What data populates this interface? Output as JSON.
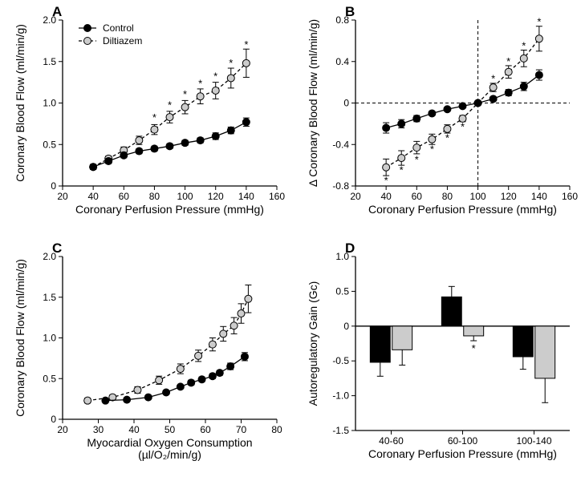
{
  "colors": {
    "control_fill": "#000000",
    "diltiazem_fill": "#cccccc",
    "stroke": "#000000",
    "bg": "#ffffff",
    "dash": "#000000"
  },
  "marker": {
    "r": 4.5,
    "stroke_w": 1
  },
  "line_w": 1.3,
  "err_cap": 4,
  "panelA": {
    "label": "A",
    "type": "scatter-line",
    "xlim": [
      20,
      160
    ],
    "xticks": [
      20,
      40,
      60,
      80,
      100,
      120,
      140,
      160
    ],
    "ylim": [
      0,
      2.0
    ],
    "yticks": [
      0,
      0.5,
      1.0,
      1.5,
      2.0
    ],
    "xlabel": "Coronary Perfusion Pressure (mmHg)",
    "ylabel": "Coronary Blood Flow (ml/min/g)",
    "legend": {
      "control": "Control",
      "diltiazem": "Diltiazem"
    },
    "series": {
      "control": {
        "x": [
          40,
          50,
          60,
          70,
          80,
          90,
          100,
          110,
          120,
          130,
          140
        ],
        "y": [
          0.23,
          0.3,
          0.37,
          0.42,
          0.45,
          0.48,
          0.52,
          0.55,
          0.6,
          0.67,
          0.77
        ],
        "err": [
          0.03,
          0.03,
          0.03,
          0.03,
          0.03,
          0.03,
          0.03,
          0.03,
          0.04,
          0.04,
          0.05
        ]
      },
      "diltiazem": {
        "x": [
          40,
          50,
          60,
          70,
          80,
          90,
          100,
          110,
          120,
          130,
          140
        ],
        "y": [
          0.23,
          0.33,
          0.43,
          0.55,
          0.68,
          0.83,
          0.95,
          1.08,
          1.15,
          1.3,
          1.48
        ],
        "err": [
          0.03,
          0.03,
          0.04,
          0.05,
          0.06,
          0.07,
          0.08,
          0.09,
          0.1,
          0.12,
          0.17
        ]
      }
    },
    "sig_x": [
      80,
      90,
      100,
      110,
      120,
      130,
      140
    ],
    "sig_y": [
      0.82,
      0.97,
      1.1,
      1.23,
      1.32,
      1.48,
      1.7
    ]
  },
  "panelB": {
    "label": "B",
    "type": "scatter-line",
    "xlim": [
      20,
      160
    ],
    "xticks": [
      20,
      40,
      60,
      80,
      100,
      120,
      140,
      160
    ],
    "ylim": [
      -0.8,
      0.8
    ],
    "yticks": [
      -0.8,
      -0.4,
      0,
      0.4,
      0.8
    ],
    "xlabel": "Coronary Perfusion Pressure (mmHg)",
    "ylabel": "Δ Coronary Blood Flow (ml/min/g)",
    "ref_x": 100,
    "ref_y": 0,
    "series": {
      "control": {
        "x": [
          40,
          50,
          60,
          70,
          80,
          90,
          100,
          110,
          120,
          130,
          140
        ],
        "y": [
          -0.24,
          -0.2,
          -0.15,
          -0.1,
          -0.06,
          -0.03,
          0.0,
          0.04,
          0.1,
          0.16,
          0.27
        ],
        "err": [
          0.05,
          0.04,
          0.03,
          0.02,
          0.02,
          0.01,
          0,
          0.02,
          0.03,
          0.04,
          0.05
        ]
      },
      "diltiazem": {
        "x": [
          40,
          50,
          60,
          70,
          80,
          90,
          100,
          110,
          120,
          130,
          140
        ],
        "y": [
          -0.62,
          -0.53,
          -0.43,
          -0.35,
          -0.25,
          -0.15,
          0.0,
          0.15,
          0.3,
          0.43,
          0.62
        ],
        "err": [
          0.08,
          0.07,
          0.06,
          0.05,
          0.04,
          0.03,
          0,
          0.04,
          0.06,
          0.08,
          0.12
        ]
      }
    },
    "sig_below_x": [
      40,
      50,
      60,
      70,
      80,
      90
    ],
    "sig_below_y": [
      -0.75,
      -0.65,
      -0.55,
      -0.45,
      -0.34,
      -0.23
    ],
    "sig_above_x": [
      110,
      120,
      130,
      140
    ],
    "sig_above_y": [
      0.23,
      0.4,
      0.55,
      0.78
    ]
  },
  "panelC": {
    "label": "C",
    "type": "scatter-line",
    "xlim": [
      20,
      80
    ],
    "xticks": [
      20,
      30,
      40,
      50,
      60,
      70,
      80
    ],
    "ylim": [
      0,
      2.0
    ],
    "yticks": [
      0,
      0.5,
      1.0,
      1.5,
      2.0
    ],
    "xlabel": "Myocardial Oxygen Consumption\n(µl/O₂/min/g)",
    "ylabel": "Coronary Blood Flow (ml/min/g)",
    "series": {
      "control": {
        "x": [
          32,
          38,
          44,
          49,
          53,
          56,
          59,
          62,
          64,
          67,
          71
        ],
        "y": [
          0.23,
          0.24,
          0.27,
          0.33,
          0.4,
          0.45,
          0.49,
          0.53,
          0.57,
          0.65,
          0.77
        ],
        "err": [
          0.02,
          0.02,
          0.02,
          0.02,
          0.02,
          0.03,
          0.03,
          0.03,
          0.03,
          0.04,
          0.05
        ]
      },
      "diltiazem": {
        "x": [
          27,
          34,
          41,
          47,
          53,
          58,
          62,
          65,
          68,
          70,
          72
        ],
        "y": [
          0.23,
          0.27,
          0.36,
          0.48,
          0.62,
          0.78,
          0.92,
          1.05,
          1.15,
          1.3,
          1.48
        ],
        "err": [
          0.03,
          0.03,
          0.04,
          0.05,
          0.06,
          0.07,
          0.08,
          0.09,
          0.1,
          0.12,
          0.17
        ]
      }
    }
  },
  "panelD": {
    "label": "D",
    "type": "bar",
    "categories": [
      "40-60",
      "60-100",
      "100-140"
    ],
    "xlabel": "Coronary Perfusion Pressure (mmHg)",
    "ylabel": "Autoregulatory Gain (Gc)",
    "ylim": [
      -1.5,
      1.0
    ],
    "yticks": [
      -1.5,
      -1.0,
      -0.5,
      0,
      0.5,
      1.0
    ],
    "series": {
      "control": {
        "y": [
          -0.52,
          0.42,
          -0.44
        ],
        "err": [
          0.2,
          0.15,
          0.18
        ]
      },
      "diltiazem": {
        "y": [
          -0.34,
          -0.14,
          -0.75
        ],
        "err": [
          0.22,
          0.07,
          0.35
        ]
      }
    },
    "sig_idx": 1
  }
}
